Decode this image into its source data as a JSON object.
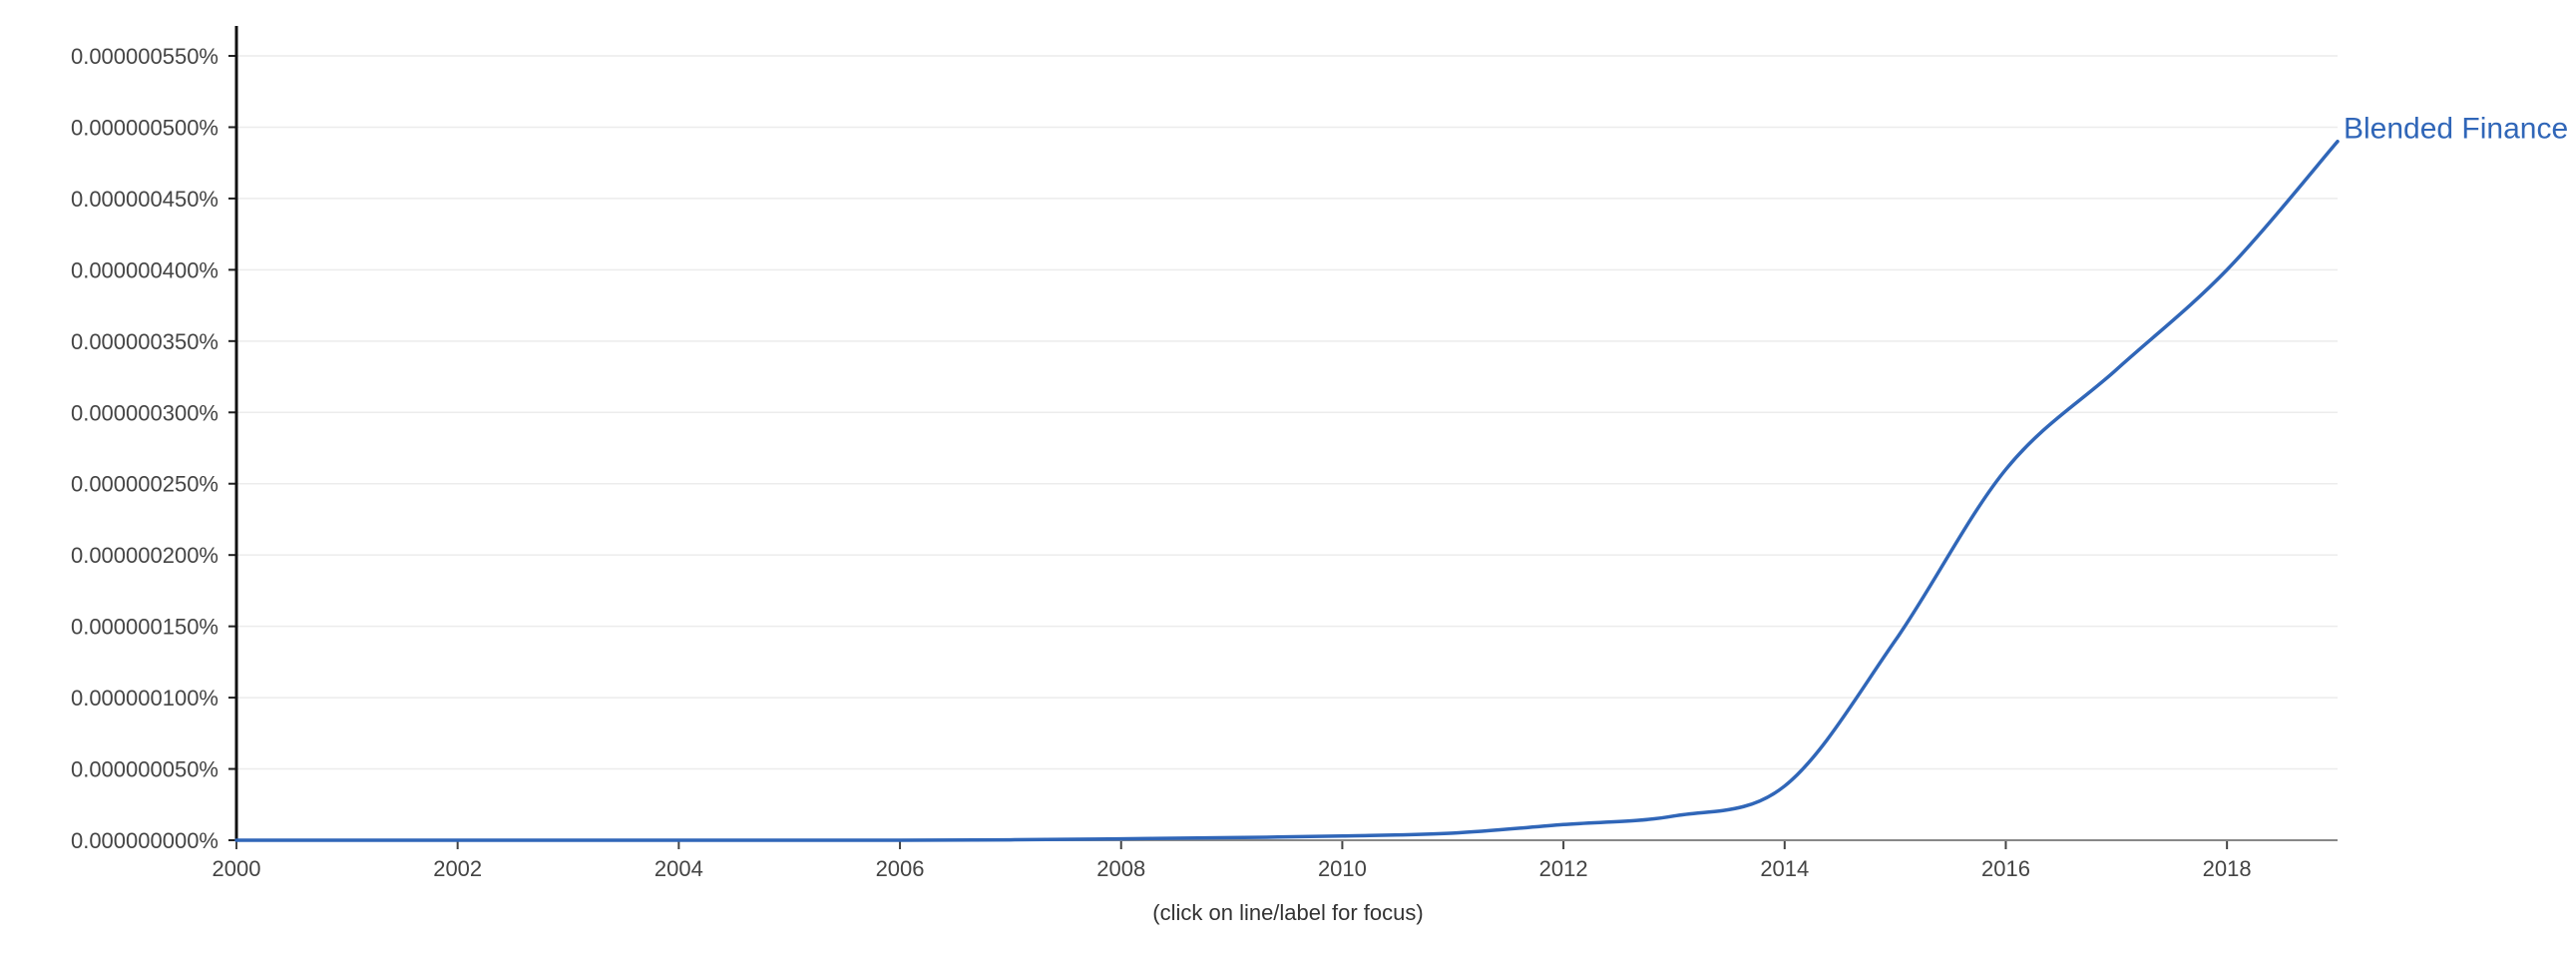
{
  "chart_data": {
    "type": "line",
    "x": [
      2000,
      2001,
      2002,
      2003,
      2004,
      2005,
      2006,
      2007,
      2008,
      2009,
      2010,
      2011,
      2012,
      2013,
      2014,
      2015,
      2016,
      2017,
      2018,
      2019
    ],
    "series": [
      {
        "name": "Blended Finance",
        "color": "#3066b8",
        "values": [
          0.0,
          0.0,
          0.0,
          0.0,
          0.0,
          0.0,
          0.0,
          3e-10,
          1e-09,
          1.8e-09,
          3e-09,
          5e-09,
          1.1e-08,
          1.7e-08,
          3.8e-08,
          1.4e-07,
          2.6e-07,
          3.3e-07,
          4e-07,
          4.9e-07
        ]
      }
    ],
    "ylim": [
      0,
      5.5e-07
    ],
    "xlim": [
      2000,
      2019
    ],
    "y_ticks": [
      "0.000000000%",
      "0.000000050%",
      "0.000000100%",
      "0.000000150%",
      "0.000000200%",
      "0.000000250%",
      "0.000000300%",
      "0.000000350%",
      "0.000000400%",
      "0.000000450%",
      "0.000000500%",
      "0.000000550%"
    ],
    "x_ticks": [
      "2000",
      "2002",
      "2004",
      "2006",
      "2008",
      "2010",
      "2012",
      "2014",
      "2016",
      "2018"
    ],
    "grid": true,
    "legend": "inline label at line end"
  },
  "hint": "(click on line/label for focus)"
}
